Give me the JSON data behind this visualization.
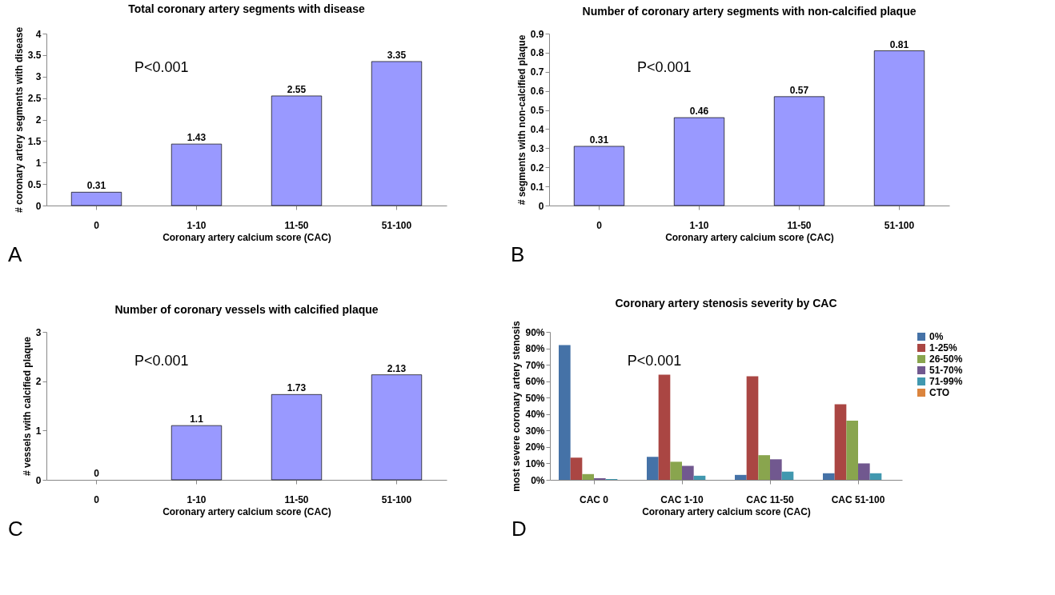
{
  "chart_data": [
    {
      "type": "bar",
      "title": "Total coronary artery segments with disease",
      "xlabel": "Coronary artery calcium score (CAC)",
      "ylabel": "# coronary artery segments with disease",
      "categories": [
        "0",
        "1-10",
        "11-50",
        "51-100"
      ],
      "values": [
        0.31,
        1.43,
        2.55,
        3.35
      ],
      "color": "#9999ff",
      "ylim": [
        0,
        4
      ],
      "yticks": [
        0,
        0.5,
        1,
        1.5,
        2,
        2.5,
        3,
        3.5,
        4
      ],
      "data_labels": true,
      "grid": false,
      "annotations": [
        "P<0.001",
        "A"
      ]
    },
    {
      "type": "bar",
      "title": "Number of coronary artery segments with non-calcified plaque",
      "xlabel": "Coronary artery calcium score (CAC)",
      "ylabel": "# segments with non-calcified plaque",
      "categories": [
        "0",
        "1-10",
        "11-50",
        "51-100"
      ],
      "values": [
        0.31,
        0.46,
        0.57,
        0.81
      ],
      "color": "#9999ff",
      "ylim": [
        0,
        0.9
      ],
      "yticks": [
        0,
        0.1,
        0.2,
        0.3,
        0.4,
        0.5,
        0.6,
        0.7,
        0.8,
        0.9
      ],
      "data_labels": true,
      "grid": false,
      "annotations": [
        "P<0.001",
        "B"
      ]
    },
    {
      "type": "bar",
      "title": "Number of coronary vessels with calcified plaque",
      "xlabel": "Coronary artery calcium score (CAC)",
      "ylabel": "# vessels with calcified plaque",
      "categories": [
        "0",
        "1-10",
        "11-50",
        "51-100"
      ],
      "values": [
        0,
        1.1,
        1.73,
        2.13
      ],
      "color": "#9999ff",
      "ylim": [
        0,
        3
      ],
      "yticks": [
        0,
        1,
        2,
        3
      ],
      "data_labels": true,
      "grid": false,
      "annotations": [
        "P<0.001",
        "C"
      ]
    },
    {
      "type": "bar",
      "title": "Coronary artery stenosis severity by CAC",
      "xlabel": "Coronary artery calcium score (CAC)",
      "ylabel": "most severe coronary artery stenosis",
      "categories": [
        "CAC 0",
        "CAC 1-10",
        "CAC 11-50",
        "CAC 51-100"
      ],
      "series": [
        {
          "name": "0%",
          "color": "#4572a7",
          "values": [
            82,
            14,
            3,
            4
          ]
        },
        {
          "name": "1-25%",
          "color": "#aa4643",
          "values": [
            13.5,
            64,
            63,
            46
          ]
        },
        {
          "name": "26-50%",
          "color": "#89a54e",
          "values": [
            3.5,
            11,
            15,
            36
          ]
        },
        {
          "name": "51-70%",
          "color": "#71588f",
          "values": [
            1,
            8.5,
            12.5,
            10
          ]
        },
        {
          "name": "71-99%",
          "color": "#4198af",
          "values": [
            0.5,
            2.5,
            5,
            4
          ]
        },
        {
          "name": "CTO",
          "color": "#db843d",
          "values": [
            0,
            0,
            0,
            0
          ]
        }
      ],
      "ylim": [
        0,
        90
      ],
      "yticks": [
        {
          "value": 0,
          "label": "0%"
        },
        {
          "value": 10,
          "label": "10%"
        },
        {
          "value": 20,
          "label": "20%"
        },
        {
          "value": 30,
          "label": "30%"
        },
        {
          "value": 40,
          "label": "40%"
        },
        {
          "value": 50,
          "label": "50%"
        },
        {
          "value": 60,
          "label": "60%"
        },
        {
          "value": 70,
          "label": "70%"
        },
        {
          "value": 80,
          "label": "80%"
        },
        {
          "value": 90,
          "label": "90%"
        }
      ],
      "legend": "right",
      "grid": false,
      "annotations": [
        "P<0.001",
        "D"
      ]
    }
  ]
}
